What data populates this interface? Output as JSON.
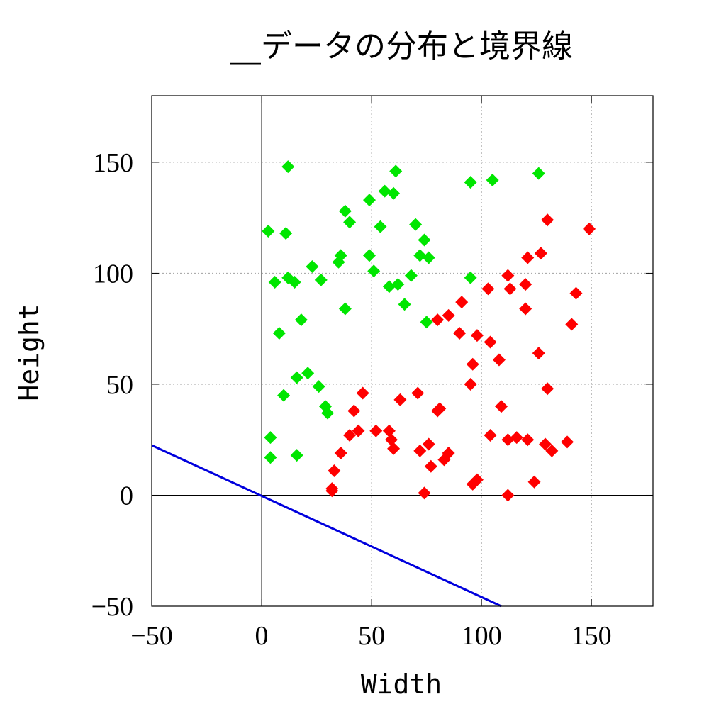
{
  "chart_data": {
    "type": "scatter",
    "title": "__データの分布と境界線",
    "xlabel": "Width",
    "ylabel": "Height",
    "xlim": [
      -50,
      178
    ],
    "ylim": [
      -50,
      180
    ],
    "xticks": [
      -50,
      0,
      50,
      100,
      150
    ],
    "yticks": [
      -50,
      0,
      50,
      100,
      150
    ],
    "xtick_labels": [
      "−50",
      "0",
      "50",
      "100",
      "150"
    ],
    "ytick_labels": [
      "−50",
      "0",
      "50",
      "100",
      "150"
    ],
    "grid": true,
    "zero_axes": true,
    "legend": "none",
    "marker": "diamond",
    "series": [
      {
        "color": "#00e600",
        "points": [
          [
            12,
            148
          ],
          [
            61,
            146
          ],
          [
            126,
            145
          ],
          [
            95,
            141
          ],
          [
            105,
            142
          ],
          [
            56,
            137
          ],
          [
            60,
            136
          ],
          [
            49,
            133
          ],
          [
            38,
            128
          ],
          [
            40,
            123
          ],
          [
            70,
            122
          ],
          [
            54,
            121
          ],
          [
            3,
            119
          ],
          [
            11,
            118
          ],
          [
            74,
            115
          ],
          [
            36,
            108
          ],
          [
            49,
            108
          ],
          [
            72,
            108
          ],
          [
            76,
            107
          ],
          [
            35,
            105
          ],
          [
            23,
            103
          ],
          [
            51,
            101
          ],
          [
            68,
            99
          ],
          [
            12,
            98
          ],
          [
            95,
            98
          ],
          [
            27,
            97
          ],
          [
            6,
            96
          ],
          [
            15,
            96
          ],
          [
            58,
            94
          ],
          [
            62,
            95
          ],
          [
            65,
            86
          ],
          [
            38,
            84
          ],
          [
            18,
            79
          ],
          [
            75,
            78
          ],
          [
            8,
            73
          ],
          [
            21,
            55
          ],
          [
            16,
            53
          ],
          [
            26,
            49
          ],
          [
            10,
            45
          ],
          [
            29,
            40
          ],
          [
            30,
            37
          ],
          [
            4,
            26
          ],
          [
            4,
            17
          ],
          [
            16,
            18
          ]
        ]
      },
      {
        "color": "#ff0000",
        "points": [
          [
            149,
            120
          ],
          [
            130,
            124
          ],
          [
            127,
            109
          ],
          [
            121,
            107
          ],
          [
            112,
            99
          ],
          [
            120,
            95
          ],
          [
            113,
            93
          ],
          [
            143,
            91
          ],
          [
            103,
            93
          ],
          [
            91,
            87
          ],
          [
            85,
            81
          ],
          [
            120,
            84
          ],
          [
            80,
            79
          ],
          [
            98,
            72
          ],
          [
            90,
            73
          ],
          [
            104,
            69
          ],
          [
            141,
            77
          ],
          [
            126,
            64
          ],
          [
            108,
            61
          ],
          [
            96,
            59
          ],
          [
            95,
            50
          ],
          [
            130,
            48
          ],
          [
            71,
            46
          ],
          [
            46,
            46
          ],
          [
            63,
            43
          ],
          [
            109,
            40
          ],
          [
            81,
            39
          ],
          [
            80,
            38
          ],
          [
            42,
            38
          ],
          [
            52,
            29
          ],
          [
            58,
            29
          ],
          [
            44,
            29
          ],
          [
            40,
            27
          ],
          [
            59,
            25
          ],
          [
            104,
            27
          ],
          [
            116,
            26
          ],
          [
            112,
            25
          ],
          [
            121,
            25
          ],
          [
            139,
            24
          ],
          [
            129,
            23
          ],
          [
            132,
            20
          ],
          [
            76,
            23
          ],
          [
            72,
            20
          ],
          [
            60,
            21
          ],
          [
            85,
            19
          ],
          [
            83,
            16
          ],
          [
            36,
            19
          ],
          [
            77,
            13
          ],
          [
            33,
            11
          ],
          [
            98,
            7
          ],
          [
            96,
            5
          ],
          [
            124,
            6
          ],
          [
            74,
            1
          ],
          [
            112,
            0
          ],
          [
            32,
            3
          ],
          [
            32,
            2
          ]
        ]
      }
    ],
    "lines": [
      {
        "color": "#0000dd",
        "from": [
          -50,
          22.5
        ],
        "to": [
          109,
          -50
        ]
      }
    ]
  }
}
